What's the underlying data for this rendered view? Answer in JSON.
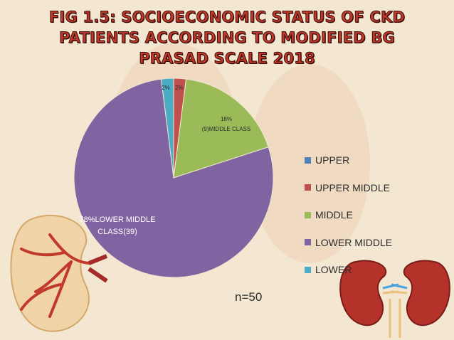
{
  "chart_data": {
    "type": "pie",
    "title": "FIG 1.5: SOCIOECONOMIC STATUS OF CKD PATIENTS ACCORDING TO MODIFIED BG PRASAD SCALE 2018",
    "title_lines": [
      "FIG 1.5: SOCIOECONOMIC STATUS OF CKD",
      "PATIENTS ACCORDING TO MODIFIED BG",
      "PRASAD SCALE 2018"
    ],
    "slices": [
      {
        "name": "UPPER",
        "value": 2,
        "count": 1,
        "label": "2%",
        "color": "#4bacc6"
      },
      {
        "name": "UPPER MIDDLE",
        "value": 2,
        "count": 1,
        "label": "2%",
        "color": "#c0504d"
      },
      {
        "name": "MIDDLE",
        "value": 18,
        "count": 9,
        "label": "18%\n(9)MIDDLE CLASS",
        "color": "#9bbb59"
      },
      {
        "name": "LOWER MIDDLE",
        "value": 78,
        "count": 39,
        "label": "78%LOWER MIDDLE\nCLASS(39)",
        "color": "#8064a2"
      },
      {
        "name": "LOWER",
        "value": 0,
        "count": 0,
        "label": "",
        "color": "#4bacc6"
      }
    ],
    "legend_order": [
      "UPPER",
      "UPPER MIDDLE",
      "MIDDLE",
      "LOWER MIDDLE",
      "LOWER"
    ],
    "legend_colors": [
      "#4f81bd",
      "#c0504d",
      "#9bbb59",
      "#8064a2",
      "#4bacc6"
    ],
    "legend_position": "right",
    "annotation": "n=50"
  }
}
